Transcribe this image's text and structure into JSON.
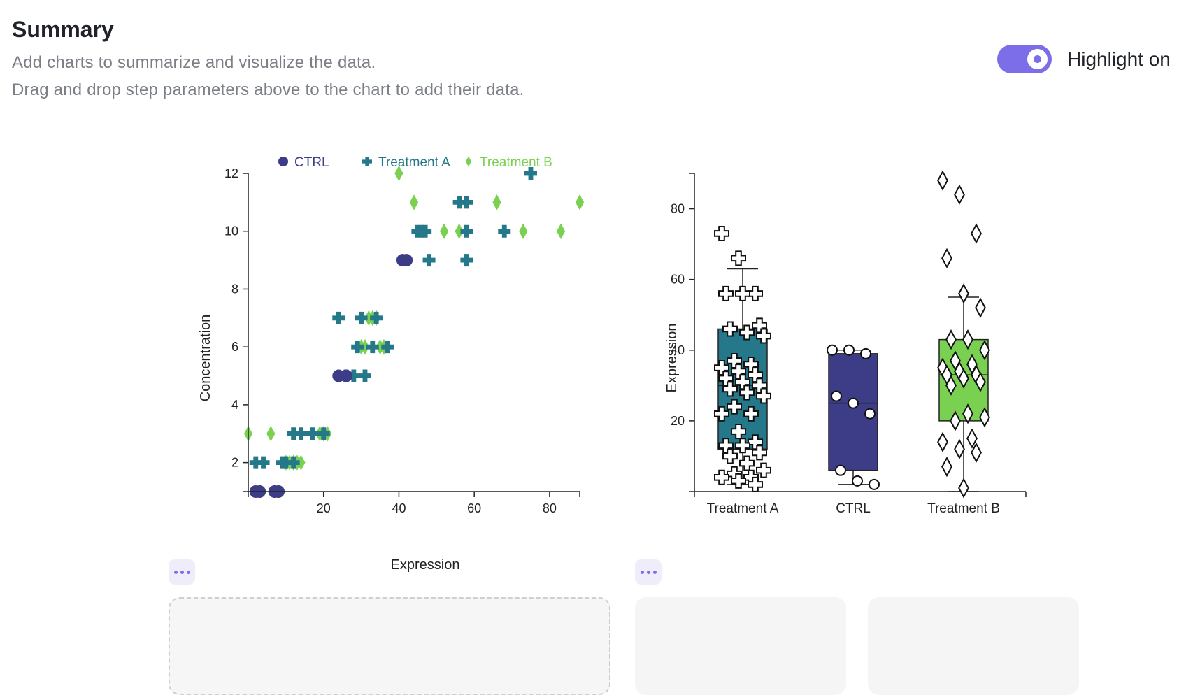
{
  "summary": {
    "title": "Summary",
    "description_line1": "Add charts to summarize and visualize the data.",
    "description_line2": "Drag and drop step parameters above to the chart to add their data."
  },
  "highlight_toggle": {
    "label": "Highlight on",
    "state": "on",
    "color": "#7c6ee8"
  },
  "colors": {
    "CTRL": "#3d3d87",
    "Treatment A": "#24788a",
    "Treatment B": "#7ad151"
  },
  "chart_data": [
    {
      "type": "scatter",
      "xlabel": "Expression",
      "ylabel": "Concentration",
      "xlim": [
        0,
        88
      ],
      "ylim": [
        1,
        12
      ],
      "xticks": [
        20,
        40,
        60,
        80
      ],
      "yticks": [
        2,
        4,
        6,
        8,
        10,
        12
      ],
      "legend": "top",
      "series": [
        {
          "name": "CTRL",
          "marker": "circle",
          "points": [
            [
              2,
              1
            ],
            [
              3,
              1
            ],
            [
              7,
              1
            ],
            [
              8,
              1
            ],
            [
              24,
              5
            ],
            [
              26,
              5
            ],
            [
              41,
              9
            ],
            [
              42,
              9
            ]
          ]
        },
        {
          "name": "Treatment A",
          "marker": "cross",
          "points": [
            [
              2,
              2
            ],
            [
              4,
              2
            ],
            [
              9,
              2
            ],
            [
              10,
              2
            ],
            [
              12,
              2
            ],
            [
              12,
              3
            ],
            [
              14,
              3
            ],
            [
              17,
              3
            ],
            [
              20,
              3
            ],
            [
              24,
              7
            ],
            [
              30,
              7
            ],
            [
              34,
              7
            ],
            [
              26,
              5
            ],
            [
              28,
              5
            ],
            [
              31,
              5
            ],
            [
              29,
              6
            ],
            [
              33,
              6
            ],
            [
              37,
              6
            ],
            [
              45,
              10
            ],
            [
              46,
              10
            ],
            [
              47,
              10
            ],
            [
              58,
              10
            ],
            [
              68,
              10
            ],
            [
              48,
              9
            ],
            [
              58,
              9
            ],
            [
              56,
              11
            ],
            [
              58,
              11
            ],
            [
              75,
              12
            ]
          ]
        },
        {
          "name": "Treatment B",
          "marker": "diamond",
          "points": [
            [
              0,
              3
            ],
            [
              6,
              3
            ],
            [
              19,
              3
            ],
            [
              20,
              3
            ],
            [
              21,
              3
            ],
            [
              10,
              2
            ],
            [
              11,
              2
            ],
            [
              12,
              2
            ],
            [
              13,
              2
            ],
            [
              14,
              2
            ],
            [
              32,
              7
            ],
            [
              33,
              7
            ],
            [
              34,
              7
            ],
            [
              30,
              6
            ],
            [
              31,
              6
            ],
            [
              35,
              6
            ],
            [
              36,
              6
            ],
            [
              40,
              12
            ],
            [
              44,
              11
            ],
            [
              66,
              11
            ],
            [
              88,
              11
            ],
            [
              52,
              10
            ],
            [
              56,
              10
            ],
            [
              73,
              10
            ],
            [
              83,
              10
            ]
          ]
        }
      ]
    },
    {
      "type": "box",
      "ylabel": "Expression",
      "xlabel": "",
      "ylim": [
        0,
        90
      ],
      "yticks": [
        20,
        40,
        60,
        80
      ],
      "categories": [
        "Treatment A",
        "CTRL",
        "Treatment B"
      ],
      "boxes": [
        {
          "category": "Treatment A",
          "min": 2,
          "q1": 12,
          "median": 30,
          "q3": 46,
          "max": 63,
          "points": [
            73,
            66,
            56,
            56,
            56,
            47,
            46,
            45,
            44,
            37,
            36,
            35,
            34,
            33,
            32,
            31,
            30,
            29,
            28,
            27,
            24,
            22,
            22,
            17,
            14,
            13,
            13,
            11,
            10,
            8,
            6,
            5,
            4,
            4,
            3,
            2
          ]
        },
        {
          "category": "CTRL",
          "min": 2,
          "q1": 6,
          "median": 25,
          "q3": 39,
          "max": 40,
          "points": [
            40,
            40,
            39,
            27,
            25,
            22,
            6,
            3,
            2
          ]
        },
        {
          "category": "Treatment B",
          "min": 0,
          "q1": 20,
          "median": 33,
          "q3": 43,
          "max": 55,
          "points": [
            88,
            84,
            73,
            66,
            56,
            52,
            43,
            43,
            40,
            37,
            36,
            35,
            34,
            33,
            33,
            32,
            31,
            30,
            22,
            21,
            20,
            15,
            14,
            12,
            11,
            7,
            1
          ]
        }
      ]
    }
  ]
}
